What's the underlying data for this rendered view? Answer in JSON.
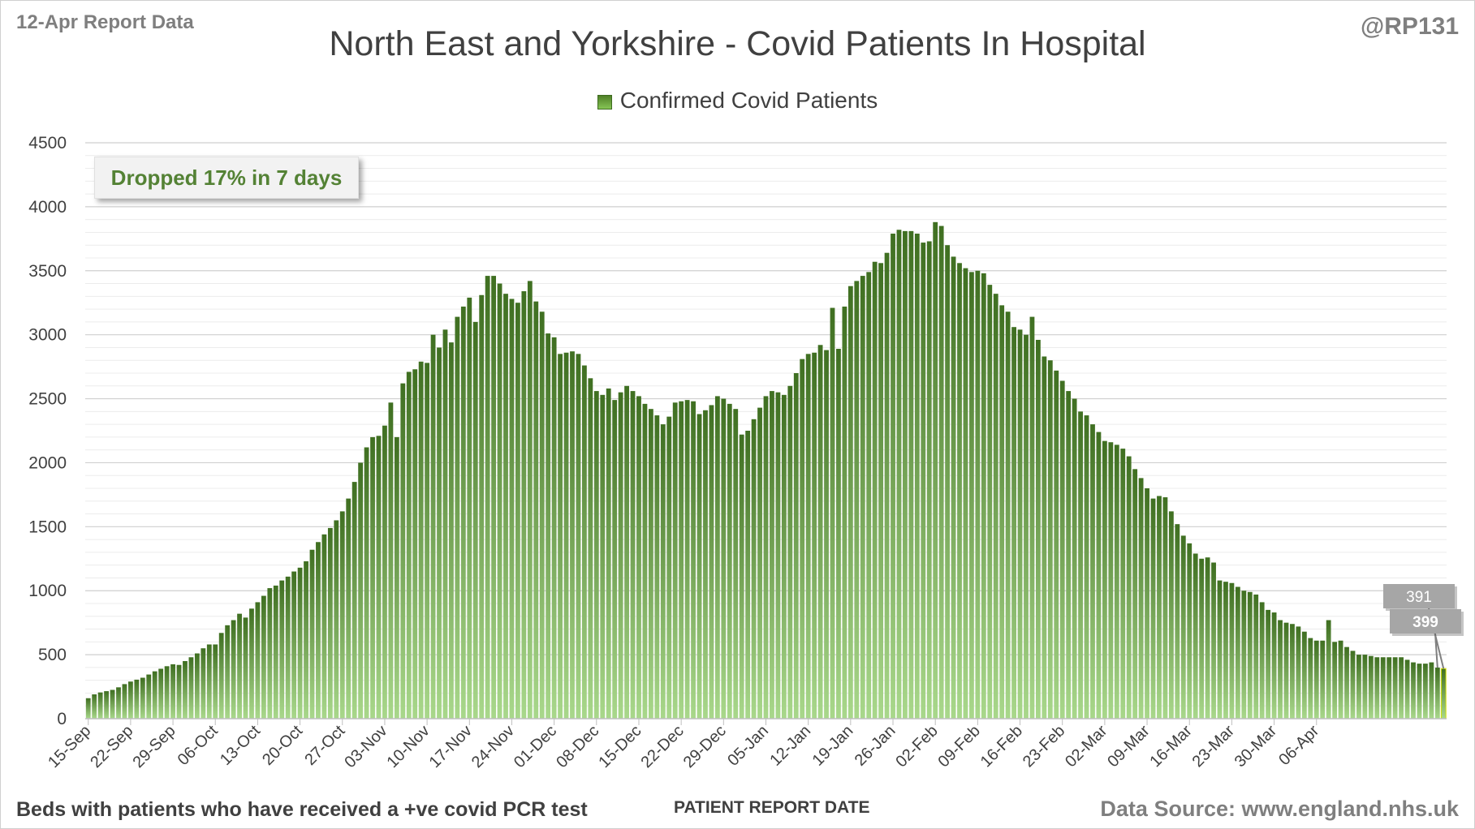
{
  "report_label": "12-Apr Report Data",
  "author": "@RP131",
  "footnote": "Beds with patients who have received a +ve covid PCR test",
  "source": "Data Source: www.england.nhs.uk",
  "callout": "Dropped 17% in 7 days",
  "colors": {
    "bar_top": "#3f6f21",
    "bar_bottom": "#a9d88b",
    "grid": "#d9d9d9",
    "text": "#404040",
    "callout_text": "#548235",
    "label_box": "#a6a6a6"
  },
  "chart_data": {
    "type": "bar",
    "title": "North East and Yorkshire - Covid Patients In Hospital",
    "xlabel": "PATIENT REPORT DATE",
    "ylabel": "",
    "ylim": [
      0,
      4500
    ],
    "yticks": [
      0,
      500,
      1000,
      1500,
      2000,
      2500,
      3000,
      3500,
      4000,
      4500
    ],
    "grid": true,
    "legend_position": "top-center",
    "start_date": "15-Sep",
    "xtick_labels": [
      "15-Sep",
      "22-Sep",
      "29-Sep",
      "06-Oct",
      "13-Oct",
      "20-Oct",
      "27-Oct",
      "03-Nov",
      "10-Nov",
      "17-Nov",
      "24-Nov",
      "01-Dec",
      "08-Dec",
      "15-Dec",
      "22-Dec",
      "29-Dec",
      "05-Jan",
      "12-Jan",
      "19-Jan",
      "26-Jan",
      "02-Feb",
      "09-Feb",
      "16-Feb",
      "23-Feb",
      "02-Mar",
      "09-Mar",
      "16-Mar",
      "23-Mar",
      "30-Mar",
      "06-Apr"
    ],
    "series": [
      {
        "name": "Confirmed Covid Patients",
        "values": [
          160,
          190,
          205,
          215,
          225,
          245,
          270,
          290,
          305,
          320,
          345,
          370,
          390,
          410,
          425,
          420,
          450,
          480,
          510,
          550,
          580,
          580,
          670,
          730,
          770,
          820,
          790,
          860,
          910,
          960,
          1020,
          1040,
          1080,
          1110,
          1150,
          1180,
          1230,
          1320,
          1380,
          1440,
          1490,
          1550,
          1620,
          1720,
          1850,
          2000,
          2120,
          2200,
          2210,
          2290,
          2470,
          2200,
          2620,
          2710,
          2730,
          2790,
          2780,
          3000,
          2900,
          3040,
          2940,
          3140,
          3220,
          3290,
          3100,
          3310,
          3460,
          3460,
          3400,
          3320,
          3280,
          3250,
          3340,
          3420,
          3260,
          3180,
          3010,
          2980,
          2850,
          2860,
          2870,
          2850,
          2760,
          2660,
          2560,
          2530,
          2580,
          2490,
          2550,
          2600,
          2560,
          2520,
          2460,
          2420,
          2370,
          2300,
          2360,
          2470,
          2480,
          2490,
          2480,
          2380,
          2410,
          2450,
          2520,
          2500,
          2460,
          2420,
          2220,
          2250,
          2340,
          2430,
          2520,
          2560,
          2550,
          2530,
          2600,
          2700,
          2810,
          2850,
          2860,
          2920,
          2880,
          3210,
          2890,
          3220,
          3380,
          3420,
          3460,
          3490,
          3570,
          3560,
          3640,
          3790,
          3820,
          3810,
          3810,
          3790,
          3720,
          3730,
          3880,
          3850,
          3700,
          3610,
          3560,
          3520,
          3490,
          3500,
          3480,
          3390,
          3320,
          3230,
          3180,
          3060,
          3040,
          3000,
          3140,
          2960,
          2830,
          2800,
          2720,
          2640,
          2560,
          2500,
          2400,
          2370,
          2300,
          2240,
          2170,
          2160,
          2140,
          2110,
          2050,
          1950,
          1880,
          1800,
          1720,
          1740,
          1730,
          1620,
          1520,
          1430,
          1370,
          1290,
          1250,
          1260,
          1220,
          1080,
          1070,
          1060,
          1030,
          1000,
          990,
          970,
          910,
          850,
          830,
          770,
          750,
          740,
          720,
          680,
          630,
          610,
          610,
          770,
          600,
          610,
          560,
          530,
          500,
          500,
          490,
          480,
          480,
          480,
          480,
          480,
          460,
          440,
          430,
          430,
          440,
          399,
          391
        ],
        "data_labels": {
          "391": 391,
          "399": 399
        }
      }
    ]
  }
}
